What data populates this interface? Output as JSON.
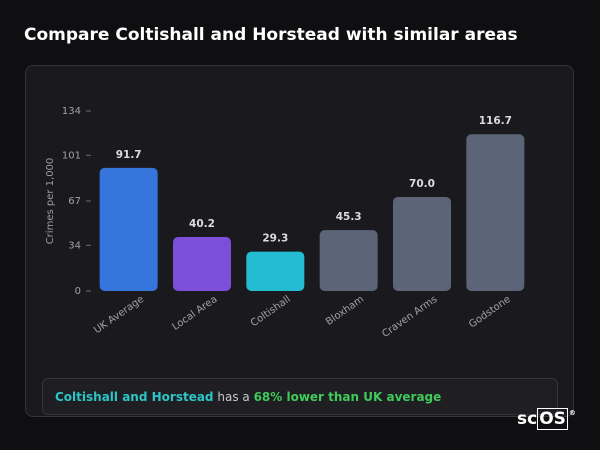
{
  "chart_data": {
    "type": "bar",
    "title": "Compare Coltishall and Horstead with similar areas",
    "y_label": "Crimes per 1,000",
    "categories": [
      "UK Average",
      "Local Area",
      "Coltishall",
      "Bloxham",
      "Craven Arms",
      "Godstone"
    ],
    "values": [
      91.7,
      40.2,
      29.3,
      45.3,
      70.0,
      116.7
    ],
    "value_labels": [
      "91.7",
      "40.2",
      "29.3",
      "45.3",
      "70.0",
      "116.7"
    ],
    "colors": [
      "#3575dc",
      "#7b4fd7",
      "#23bcd3",
      "#5b6577",
      "#5b6577",
      "#5b6577"
    ],
    "ylim": [
      0,
      134
    ],
    "yticks": [
      0,
      34,
      67,
      101,
      134
    ],
    "grid": false
  },
  "summary": {
    "area": "Coltishall and Horstead",
    "middle": "has a",
    "comparison": "68% lower than UK average"
  },
  "logo": {
    "plain": "sc",
    "boxed": "OS",
    "mark": "®"
  }
}
